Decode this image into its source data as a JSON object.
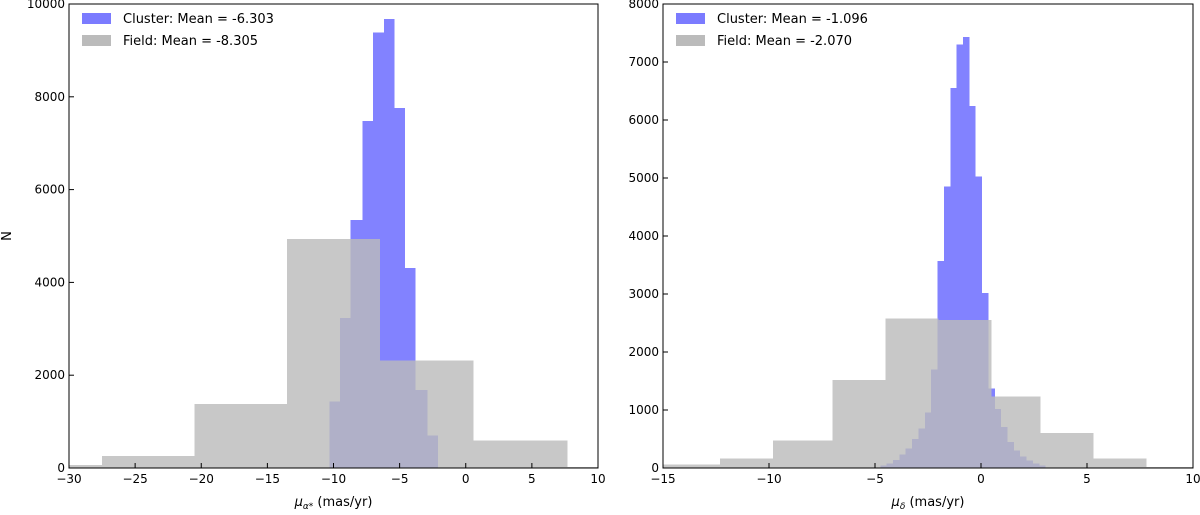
{
  "chart_data": [
    {
      "type": "bar",
      "xlabel": "μα* (mas/yr)",
      "xlabel_main": "μ",
      "xlabel_sub": "α*",
      "xlabel_unit": " (mas/yr)",
      "ylabel": "N",
      "xlim": [
        -30,
        10
      ],
      "ylim": [
        0,
        10000
      ],
      "xticks": [
        -30,
        -25,
        -20,
        -15,
        -10,
        -5,
        0,
        5,
        10
      ],
      "yticks": [
        0,
        2000,
        4000,
        6000,
        8000,
        10000
      ],
      "legend_position": "top-left",
      "series": [
        {
          "name": "Cluster: Mean = -6.303",
          "color": "#7b7bff",
          "bins": [
            {
              "x0": -10.3,
              "x1": -9.5,
              "value": 1430
            },
            {
              "x0": -9.5,
              "x1": -8.7,
              "value": 3230
            },
            {
              "x0": -8.7,
              "x1": -7.8,
              "value": 5350
            },
            {
              "x0": -7.8,
              "x1": -7.0,
              "value": 7480
            },
            {
              "x0": -7.0,
              "x1": -6.2,
              "value": 9390
            },
            {
              "x0": -6.2,
              "x1": -5.4,
              "value": 9680
            },
            {
              "x0": -5.4,
              "x1": -4.6,
              "value": 7760
            },
            {
              "x0": -4.6,
              "x1": -3.8,
              "value": 4310
            },
            {
              "x0": -3.8,
              "x1": -2.9,
              "value": 1680
            },
            {
              "x0": -2.9,
              "x1": -2.1,
              "value": 700
            }
          ]
        },
        {
          "name": "Field: Mean = -8.305",
          "color": "#bbbbbb",
          "bins": [
            {
              "x0": -30,
              "x1": -27.5,
              "value": 60
            },
            {
              "x0": -27.5,
              "x1": -20.5,
              "value": 260
            },
            {
              "x0": -20.5,
              "x1": -13.5,
              "value": 1380
            },
            {
              "x0": -13.5,
              "x1": -6.5,
              "value": 4930
            },
            {
              "x0": -6.5,
              "x1": 0.6,
              "value": 2320
            },
            {
              "x0": 0.6,
              "x1": 7.7,
              "value": 590
            },
            {
              "x0": 7.7,
              "x1": 10,
              "value": 20
            }
          ]
        }
      ]
    },
    {
      "type": "bar",
      "xlabel": "μδ (mas/yr)",
      "xlabel_main": "μ",
      "xlabel_sub": "δ",
      "xlabel_unit": " (mas/yr)",
      "ylabel": "",
      "xlim": [
        -15,
        10
      ],
      "ylim": [
        0,
        8000
      ],
      "xticks": [
        -15,
        -10,
        -5,
        0,
        5,
        10
      ],
      "yticks": [
        0,
        1000,
        2000,
        3000,
        4000,
        5000,
        6000,
        7000,
        8000
      ],
      "legend_position": "top-left",
      "series": [
        {
          "name": "Cluster: Mean = -1.096",
          "color": "#7b7bff",
          "bins": [
            {
              "x0": -4.75,
              "x1": -4.45,
              "value": 40
            },
            {
              "x0": -4.45,
              "x1": -4.15,
              "value": 80
            },
            {
              "x0": -4.15,
              "x1": -3.85,
              "value": 140
            },
            {
              "x0": -3.85,
              "x1": -3.55,
              "value": 230
            },
            {
              "x0": -3.55,
              "x1": -3.25,
              "value": 340
            },
            {
              "x0": -3.25,
              "x1": -2.95,
              "value": 500
            },
            {
              "x0": -2.95,
              "x1": -2.65,
              "value": 680
            },
            {
              "x0": -2.65,
              "x1": -2.35,
              "value": 960
            },
            {
              "x0": -2.35,
              "x1": -2.05,
              "value": 1700
            },
            {
              "x0": -2.05,
              "x1": -1.75,
              "value": 3570
            },
            {
              "x0": -1.75,
              "x1": -1.45,
              "value": 4850
            },
            {
              "x0": -1.45,
              "x1": -1.15,
              "value": 6550
            },
            {
              "x0": -1.15,
              "x1": -0.85,
              "value": 7300
            },
            {
              "x0": -0.85,
              "x1": -0.55,
              "value": 7430
            },
            {
              "x0": -0.55,
              "x1": -0.25,
              "value": 6240
            },
            {
              "x0": -0.25,
              "x1": 0.05,
              "value": 5030
            },
            {
              "x0": 0.05,
              "x1": 0.35,
              "value": 3020
            },
            {
              "x0": 0.35,
              "x1": 0.65,
              "value": 1370
            },
            {
              "x0": 0.65,
              "x1": 0.95,
              "value": 1020
            },
            {
              "x0": 0.95,
              "x1": 1.25,
              "value": 710
            },
            {
              "x0": 1.25,
              "x1": 1.55,
              "value": 450
            },
            {
              "x0": 1.55,
              "x1": 1.85,
              "value": 300
            },
            {
              "x0": 1.85,
              "x1": 2.15,
              "value": 200
            },
            {
              "x0": 2.15,
              "x1": 2.45,
              "value": 130
            },
            {
              "x0": 2.45,
              "x1": 2.75,
              "value": 80
            },
            {
              "x0": 2.75,
              "x1": 3.05,
              "value": 40
            }
          ]
        },
        {
          "name": "Field: Mean = -2.070",
          "color": "#bbbbbb",
          "bins": [
            {
              "x0": -15,
              "x1": -12.3,
              "value": 60
            },
            {
              "x0": -12.3,
              "x1": -9.8,
              "value": 160
            },
            {
              "x0": -9.8,
              "x1": -7.0,
              "value": 470
            },
            {
              "x0": -7.0,
              "x1": -4.5,
              "value": 1520
            },
            {
              "x0": -4.5,
              "x1": -2.0,
              "value": 2580
            },
            {
              "x0": -2.0,
              "x1": 0.5,
              "value": 2550
            },
            {
              "x0": 0.5,
              "x1": 2.8,
              "value": 1230
            },
            {
              "x0": 2.8,
              "x1": 5.3,
              "value": 600
            },
            {
              "x0": 5.3,
              "x1": 7.8,
              "value": 160
            },
            {
              "x0": 7.8,
              "x1": 10,
              "value": 20
            }
          ]
        }
      ]
    }
  ]
}
